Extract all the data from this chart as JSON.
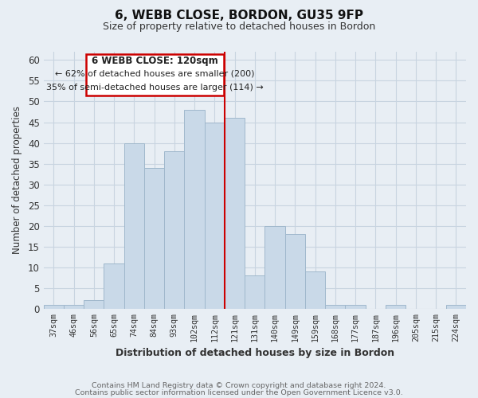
{
  "title": "6, WEBB CLOSE, BORDON, GU35 9FP",
  "subtitle": "Size of property relative to detached houses in Bordon",
  "xlabel": "Distribution of detached houses by size in Bordon",
  "ylabel": "Number of detached properties",
  "bar_labels": [
    "37sqm",
    "46sqm",
    "56sqm",
    "65sqm",
    "74sqm",
    "84sqm",
    "93sqm",
    "102sqm",
    "112sqm",
    "121sqm",
    "131sqm",
    "140sqm",
    "149sqm",
    "159sqm",
    "168sqm",
    "177sqm",
    "187sqm",
    "196sqm",
    "205sqm",
    "215sqm",
    "224sqm"
  ],
  "bar_values": [
    1,
    1,
    2,
    11,
    40,
    34,
    38,
    48,
    45,
    46,
    8,
    20,
    18,
    9,
    1,
    1,
    0,
    1,
    0,
    0,
    1
  ],
  "bar_color": "#c9d9e8",
  "bar_edge_color": "#a0b8cc",
  "ylim": [
    0,
    62
  ],
  "yticks": [
    0,
    5,
    10,
    15,
    20,
    25,
    30,
    35,
    40,
    45,
    50,
    55,
    60
  ],
  "property_line_x": 8.5,
  "property_label": "6 WEBB CLOSE: 120sqm",
  "annotation_line1": "← 62% of detached houses are smaller (200)",
  "annotation_line2": "35% of semi-detached houses are larger (114) →",
  "annotation_box_color": "#ffffff",
  "annotation_box_edge": "#cc0000",
  "property_line_color": "#cc0000",
  "footer1": "Contains HM Land Registry data © Crown copyright and database right 2024.",
  "footer2": "Contains public sector information licensed under the Open Government Licence v3.0.",
  "grid_color": "#c8d4e0",
  "background_color": "#e8eef4"
}
